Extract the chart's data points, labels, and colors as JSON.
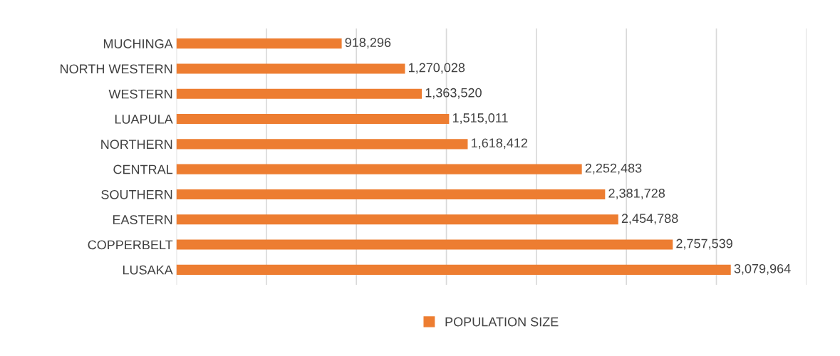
{
  "chart_data": {
    "type": "bar",
    "orientation": "horizontal",
    "categories": [
      "MUCHINGA",
      "NORTH WESTERN",
      "WESTERN",
      "LUAPULA",
      "NORTHERN",
      "CENTRAL",
      "SOUTHERN",
      "EASTERN",
      "COPPERBELT",
      "LUSAKA"
    ],
    "series": [
      {
        "name": "POPULATION SIZE",
        "color": "#ed7d31",
        "values": [
          918296,
          1270028,
          1363520,
          1515011,
          1618412,
          2252483,
          2381728,
          2454788,
          2757539,
          3079964
        ],
        "value_labels": [
          "918,296",
          "1,270,028",
          "1,363,520",
          "1,515,011",
          "1,618,412",
          "2,252,483",
          "2,381,728",
          "2,454,788",
          "2,757,539",
          "3,079,964"
        ]
      }
    ],
    "xlim": [
      0,
      3500000
    ],
    "xticks": [
      {
        "value": 0,
        "label": null
      },
      {
        "value": 500000,
        "label": null
      },
      {
        "value": 1000000,
        "label": null
      },
      {
        "value": 1500000,
        "label": null
      },
      {
        "value": 2000000,
        "label": null
      },
      {
        "value": 2500000,
        "label": null
      },
      {
        "value": 3000000,
        "label": null
      },
      {
        "value": 3500000,
        "label": null
      }
    ],
    "tick_labels": "y",
    "grid": "x",
    "legend": "bottom"
  }
}
